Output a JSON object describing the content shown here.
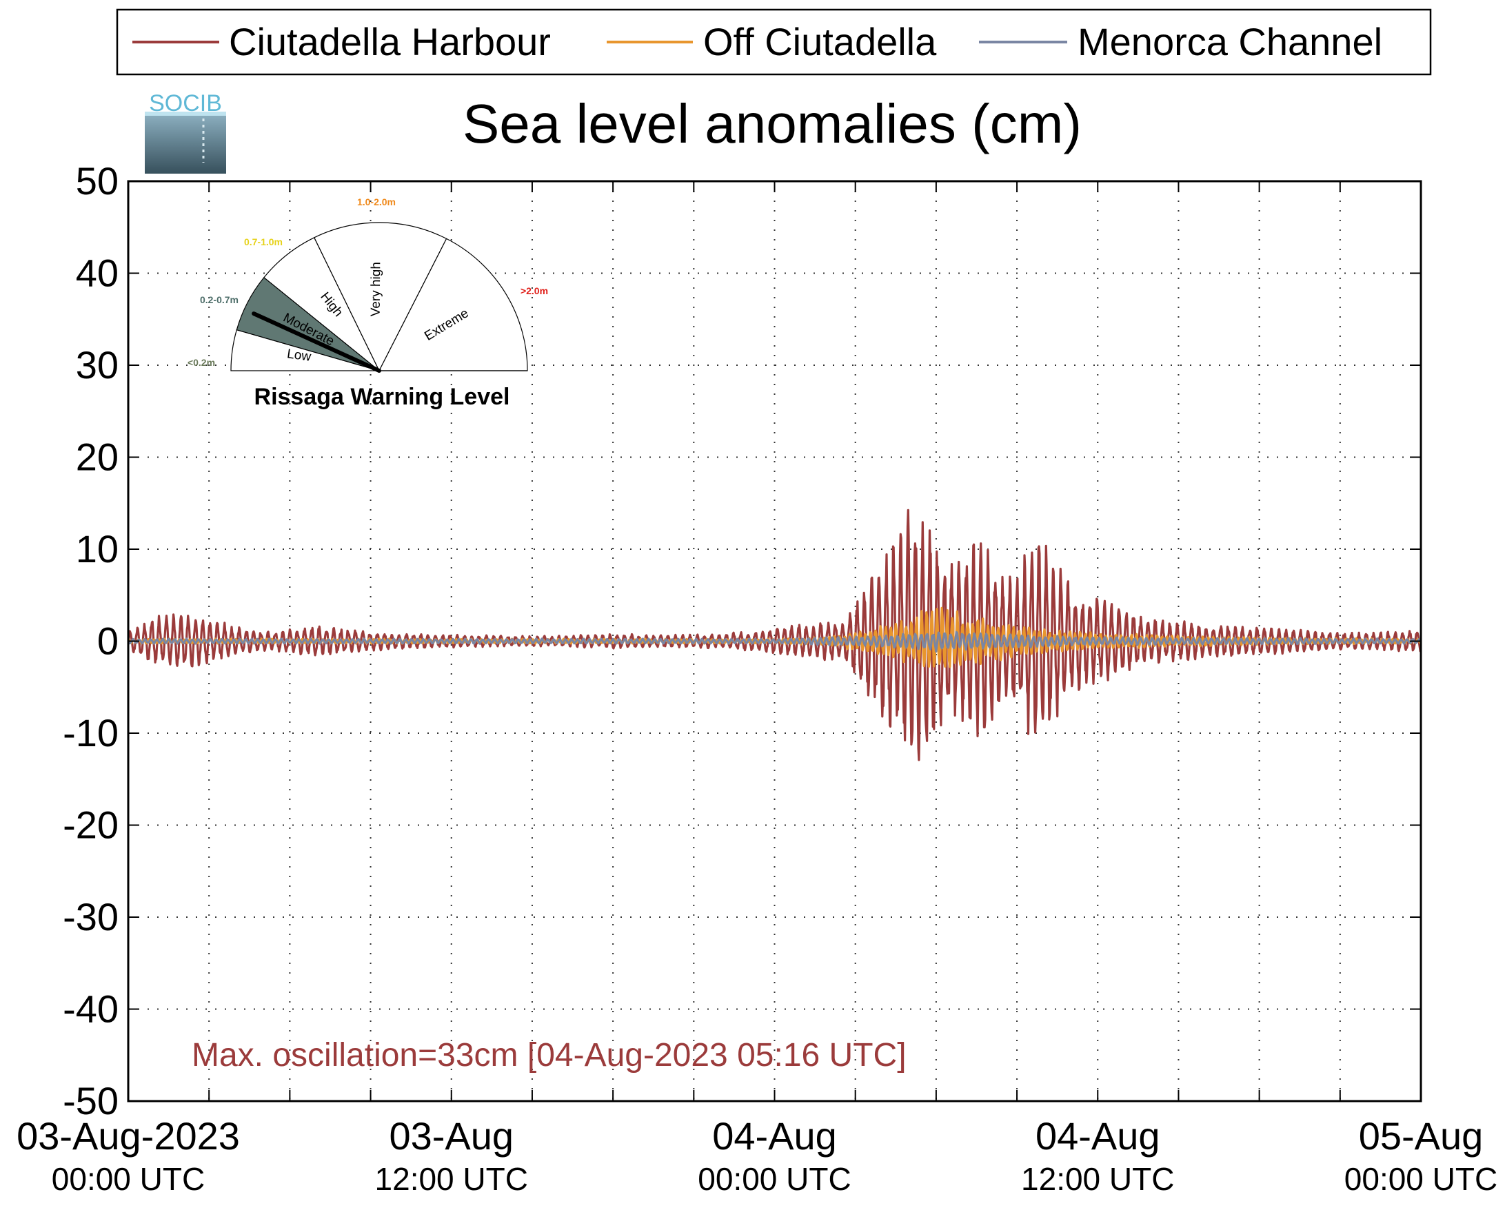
{
  "chart_data": {
    "type": "line",
    "title": "Sea level anomalies (cm)",
    "xlabel": "",
    "ylabel": "",
    "ylim": [
      -50,
      50
    ],
    "yticks": [
      50,
      40,
      30,
      20,
      10,
      0,
      -10,
      -20,
      -30,
      -40,
      -50
    ],
    "yticklabels": [
      "50",
      "40",
      "30",
      "20",
      "10",
      "0",
      "-10",
      "-20",
      "-30",
      "-40",
      "-50"
    ],
    "xlim_hours": [
      0,
      48
    ],
    "xtick_step_hours": 3,
    "xticklabels": [
      {
        "hour": 0,
        "line1": "03-Aug-2023",
        "line2": "00:00 UTC"
      },
      {
        "hour": 12,
        "line1": "03-Aug",
        "line2": "12:00 UTC"
      },
      {
        "hour": 24,
        "line1": "04-Aug",
        "line2": "00:00 UTC"
      },
      {
        "hour": 36,
        "line1": "04-Aug",
        "line2": "12:00 UTC"
      },
      {
        "hour": 48,
        "line1": "05-Aug",
        "line2": "00:00 UTC"
      }
    ],
    "grid": true,
    "legend_position": "top",
    "series": [
      {
        "name": "Ciutadella Harbour",
        "color": "#9b3b3b",
        "amplitude_envelope": [
          [
            0,
            1.0
          ],
          [
            1,
            2.8
          ],
          [
            2,
            3.2
          ],
          [
            3,
            2.6
          ],
          [
            4,
            1.6
          ],
          [
            5,
            1.1
          ],
          [
            6,
            1.3
          ],
          [
            7,
            1.8
          ],
          [
            8,
            1.5
          ],
          [
            9,
            1.1
          ],
          [
            10,
            0.9
          ],
          [
            11,
            0.8
          ],
          [
            12,
            0.7
          ],
          [
            14,
            0.6
          ],
          [
            16,
            0.6
          ],
          [
            18,
            0.8
          ],
          [
            20,
            0.7
          ],
          [
            22,
            0.8
          ],
          [
            23.8,
            1.4
          ],
          [
            24.5,
            1.8
          ],
          [
            25.5,
            2.1
          ],
          [
            26.5,
            2.2
          ],
          [
            27,
            4.5
          ],
          [
            28,
            9.5
          ],
          [
            29,
            14.5
          ],
          [
            29.5,
            15.0
          ],
          [
            30.5,
            9.0
          ],
          [
            31.5,
            11.5
          ],
          [
            32,
            10.5
          ],
          [
            32.5,
            8.0
          ],
          [
            33,
            7.5
          ],
          [
            33.5,
            11.5
          ],
          [
            34,
            11.0
          ],
          [
            35,
            6.5
          ],
          [
            36,
            5.0
          ],
          [
            37,
            3.8
          ],
          [
            38,
            2.5
          ],
          [
            40,
            2.0
          ],
          [
            42,
            1.6
          ],
          [
            44,
            1.1
          ],
          [
            46,
            0.9
          ],
          [
            48,
            1.2
          ]
        ]
      },
      {
        "name": "Off Ciutadella",
        "color": "#e8962e",
        "amplitude_envelope": [
          [
            0,
            0.3
          ],
          [
            12,
            0.3
          ],
          [
            24,
            0.3
          ],
          [
            26,
            0.5
          ],
          [
            27,
            1.2
          ],
          [
            28,
            2.0
          ],
          [
            29,
            3.0
          ],
          [
            30,
            4.5
          ],
          [
            31,
            3.5
          ],
          [
            32,
            2.5
          ],
          [
            33,
            2.0
          ],
          [
            34,
            1.5
          ],
          [
            36,
            1.0
          ],
          [
            40,
            0.6
          ],
          [
            44,
            0.4
          ],
          [
            48,
            0.3
          ]
        ]
      },
      {
        "name": "Menorca Channel",
        "color": "#7a86a3",
        "amplitude_envelope": [
          [
            0,
            0.3
          ],
          [
            12,
            0.3
          ],
          [
            24,
            0.3
          ],
          [
            27,
            0.6
          ],
          [
            29,
            1.0
          ],
          [
            30,
            1.3
          ],
          [
            32,
            1.0
          ],
          [
            34,
            0.7
          ],
          [
            36,
            0.5
          ],
          [
            40,
            0.4
          ],
          [
            48,
            0.3
          ]
        ]
      }
    ],
    "annotation": {
      "text": "Max. oscillation=33cm [04-Aug-2023 05:16 UTC]",
      "color": "#9b3b3b"
    }
  },
  "logo": {
    "text": "SOCIB",
    "color": "#5fb8d6"
  },
  "gauge": {
    "title": "Rissaga Warning Level",
    "current_level": "Moderate",
    "levels": [
      {
        "name": "Low",
        "range": "<0.2m",
        "range_color": "#6a7a5a",
        "filled": false
      },
      {
        "name": "Moderate",
        "range": "0.2-0.7m",
        "range_color": "#4e6e6a",
        "filled": true
      },
      {
        "name": "High",
        "range": "0.7-1.0m",
        "range_color": "#e6d21a",
        "filled": false
      },
      {
        "name": "Very high",
        "range": "1.0-2.0m",
        "range_color": "#f08a1c",
        "filled": false
      },
      {
        "name": "Extreme",
        "range": ">2.0m",
        "range_color": "#e0201a",
        "filled": false
      }
    ],
    "fill_color": "#607873"
  }
}
